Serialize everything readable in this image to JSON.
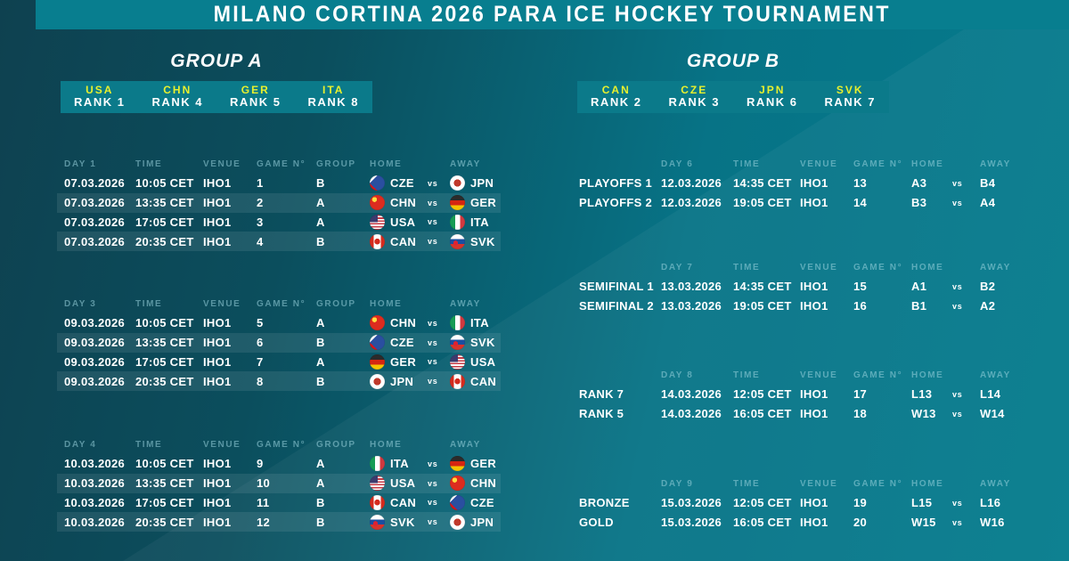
{
  "banner": {
    "title": "MILANO CORTINA 2026 PARA ICE HOCKEY TOURNAMENT"
  },
  "groups": [
    {
      "name": "GROUP A",
      "teams": [
        {
          "code": "USA",
          "rank": "RANK 1"
        },
        {
          "code": "CHN",
          "rank": "RANK 4"
        },
        {
          "code": "GER",
          "rank": "RANK 5"
        },
        {
          "code": "ITA",
          "rank": "RANK 8"
        }
      ]
    },
    {
      "name": "GROUP B",
      "teams": [
        {
          "code": "CAN",
          "rank": "RANK 2"
        },
        {
          "code": "CZE",
          "rank": "RANK 3"
        },
        {
          "code": "JPN",
          "rank": "RANK 6"
        },
        {
          "code": "SVK",
          "rank": "RANK 7"
        }
      ]
    }
  ],
  "columns": {
    "time": "TIME",
    "venue": "VENUE",
    "game": "GAME N°",
    "group": "GROUP",
    "home": "HOME",
    "away": "AWAY"
  },
  "vs_label": "vs",
  "group_stage": {
    "sections": [
      {
        "day": "DAY 1",
        "rows": [
          {
            "date": "07.03.2026",
            "time": "10:05 CET",
            "venue": "IHO1",
            "game": "1",
            "group": "B",
            "home": "CZE",
            "away": "JPN"
          },
          {
            "date": "07.03.2026",
            "time": "13:35 CET",
            "venue": "IHO1",
            "game": "2",
            "group": "A",
            "home": "CHN",
            "away": "GER"
          },
          {
            "date": "07.03.2026",
            "time": "17:05 CET",
            "venue": "IHO1",
            "game": "3",
            "group": "A",
            "home": "USA",
            "away": "ITA"
          },
          {
            "date": "07.03.2026",
            "time": "20:35 CET",
            "venue": "IHO1",
            "game": "4",
            "group": "B",
            "home": "CAN",
            "away": "SVK"
          }
        ]
      },
      {
        "day": "DAY 3",
        "rows": [
          {
            "date": "09.03.2026",
            "time": "10:05 CET",
            "venue": "IHO1",
            "game": "5",
            "group": "A",
            "home": "CHN",
            "away": "ITA"
          },
          {
            "date": "09.03.2026",
            "time": "13:35 CET",
            "venue": "IHO1",
            "game": "6",
            "group": "B",
            "home": "CZE",
            "away": "SVK"
          },
          {
            "date": "09.03.2026",
            "time": "17:05 CET",
            "venue": "IHO1",
            "game": "7",
            "group": "A",
            "home": "GER",
            "away": "USA"
          },
          {
            "date": "09.03.2026",
            "time": "20:35 CET",
            "venue": "IHO1",
            "game": "8",
            "group": "B",
            "home": "JPN",
            "away": "CAN"
          }
        ]
      },
      {
        "day": "DAY 4",
        "rows": [
          {
            "date": "10.03.2026",
            "time": "10:05 CET",
            "venue": "IHO1",
            "game": "9",
            "group": "A",
            "home": "ITA",
            "away": "GER"
          },
          {
            "date": "10.03.2026",
            "time": "13:35 CET",
            "venue": "IHO1",
            "game": "10",
            "group": "A",
            "home": "USA",
            "away": "CHN"
          },
          {
            "date": "10.03.2026",
            "time": "17:05 CET",
            "venue": "IHO1",
            "game": "11",
            "group": "B",
            "home": "CAN",
            "away": "CZE"
          },
          {
            "date": "10.03.2026",
            "time": "20:35 CET",
            "venue": "IHO1",
            "game": "12",
            "group": "B",
            "home": "SVK",
            "away": "JPN"
          }
        ]
      }
    ]
  },
  "knockout": {
    "sections": [
      {
        "day": "DAY 6",
        "rows": [
          {
            "label": "PLAYOFFS 1",
            "date": "12.03.2026",
            "time": "14:35 CET",
            "venue": "IHO1",
            "game": "13",
            "home": "A3",
            "away": "B4"
          },
          {
            "label": "PLAYOFFS 2",
            "date": "12.03.2026",
            "time": "19:05 CET",
            "venue": "IHO1",
            "game": "14",
            "home": "B3",
            "away": "A4"
          }
        ]
      },
      {
        "day": "DAY 7",
        "rows": [
          {
            "label": "SEMIFINAL 1",
            "date": "13.03.2026",
            "time": "14:35 CET",
            "venue": "IHO1",
            "game": "15",
            "home": "A1",
            "away": "B2"
          },
          {
            "label": "SEMIFINAL 2",
            "date": "13.03.2026",
            "time": "19:05 CET",
            "venue": "IHO1",
            "game": "16",
            "home": "B1",
            "away": "A2"
          }
        ]
      },
      {
        "day": "DAY 8",
        "rows": [
          {
            "label": "RANK 7",
            "date": "14.03.2026",
            "time": "12:05 CET",
            "venue": "IHO1",
            "game": "17",
            "home": "L13",
            "away": "L14"
          },
          {
            "label": "RANK 5",
            "date": "14.03.2026",
            "time": "16:05 CET",
            "venue": "IHO1",
            "game": "18",
            "home": "W13",
            "away": "W14"
          }
        ]
      },
      {
        "day": "DAY 9",
        "rows": [
          {
            "label": "BRONZE",
            "date": "15.03.2026",
            "time": "12:05 CET",
            "venue": "IHO1",
            "game": "19",
            "home": "L15",
            "away": "L16"
          },
          {
            "label": "GOLD",
            "date": "15.03.2026",
            "time": "16:05 CET",
            "venue": "IHO1",
            "game": "20",
            "home": "W15",
            "away": "W16"
          }
        ]
      }
    ]
  },
  "colors": {
    "accent_yellow": "#e8f02e",
    "banner_teal": "#087e8f",
    "panel_teal": "#0b7a8a",
    "background_dark": "#0d4150",
    "background_light": "#047c8d"
  }
}
